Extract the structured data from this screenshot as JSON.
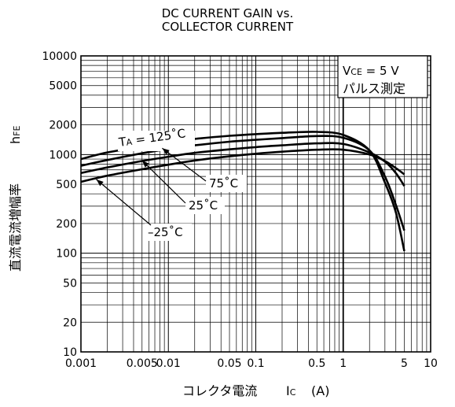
{
  "chart_data": {
    "type": "line",
    "title_line1": "DC CURRENT GAIN vs.",
    "title_line2": "COLLECTOR CURRENT",
    "xlabel": "コレクタ電流",
    "xlabel_symbol": "Ic",
    "xlabel_unit": "(A)",
    "ylabel": "直流電流増幅率",
    "ylabel_symbol": "hFE",
    "x_scale": "log",
    "y_scale": "log",
    "xlim": [
      0.001,
      10
    ],
    "ylim": [
      10,
      10000
    ],
    "x_ticks": [
      {
        "v": 0.001,
        "label": "0.001"
      },
      {
        "v": 0.005,
        "label": "0.005"
      },
      {
        "v": 0.01,
        "label": "0.01"
      },
      {
        "v": 0.05,
        "label": "0.05"
      },
      {
        "v": 0.1,
        "label": "0.1"
      },
      {
        "v": 0.5,
        "label": "0.5"
      },
      {
        "v": 1,
        "label": "1"
      },
      {
        "v": 5,
        "label": "5"
      },
      {
        "v": 10,
        "label": "10"
      }
    ],
    "y_ticks": [
      {
        "v": 10,
        "label": "10"
      },
      {
        "v": 20,
        "label": "20"
      },
      {
        "v": 50,
        "label": "50"
      },
      {
        "v": 100,
        "label": "100"
      },
      {
        "v": 200,
        "label": "200"
      },
      {
        "v": 500,
        "label": "500"
      },
      {
        "v": 1000,
        "label": "1000"
      },
      {
        "v": 2000,
        "label": "2000"
      },
      {
        "v": 5000,
        "label": "5000"
      },
      {
        "v": 10000,
        "label": "10000"
      }
    ],
    "grid": true,
    "condition_line1": "VCE = 5 V",
    "condition_line2": "パルス測定",
    "series": [
      {
        "name": "TA = 125˚C",
        "x": [
          0.001,
          0.002,
          0.005,
          0.01,
          0.02,
          0.05,
          0.1,
          0.2,
          0.5,
          1,
          2,
          3,
          4,
          5
        ],
        "y": [
          900,
          1050,
          1200,
          1330,
          1440,
          1550,
          1610,
          1660,
          1700,
          1580,
          1100,
          520,
          260,
          105
        ]
      },
      {
        "name": "75˚C",
        "x": [
          0.001,
          0.002,
          0.005,
          0.01,
          0.02,
          0.05,
          0.1,
          0.2,
          0.5,
          1,
          2,
          3,
          4,
          5
        ],
        "y": [
          770,
          880,
          1030,
          1140,
          1240,
          1350,
          1410,
          1470,
          1540,
          1480,
          1100,
          600,
          310,
          170
        ]
      },
      {
        "name": "25˚C",
        "x": [
          0.001,
          0.002,
          0.005,
          0.01,
          0.02,
          0.05,
          0.1,
          0.2,
          0.5,
          1,
          2,
          3,
          4,
          5
        ],
        "y": [
          650,
          740,
          860,
          950,
          1040,
          1130,
          1190,
          1240,
          1300,
          1280,
          1050,
          850,
          650,
          480
        ]
      },
      {
        "name": "–25˚C",
        "x": [
          0.001,
          0.002,
          0.005,
          0.01,
          0.02,
          0.05,
          0.1,
          0.2,
          0.5,
          1,
          2,
          3,
          4,
          5
        ],
        "y": [
          530,
          610,
          710,
          790,
          870,
          960,
          1020,
          1070,
          1120,
          1120,
          1000,
          860,
          730,
          630
        ]
      }
    ],
    "annotations": [
      {
        "text": "TA = 125˚C",
        "series": 0
      },
      {
        "text": "75˚C",
        "series": 1
      },
      {
        "text": "25˚C",
        "series": 2
      },
      {
        "text": "–25˚C",
        "series": 3
      }
    ]
  }
}
